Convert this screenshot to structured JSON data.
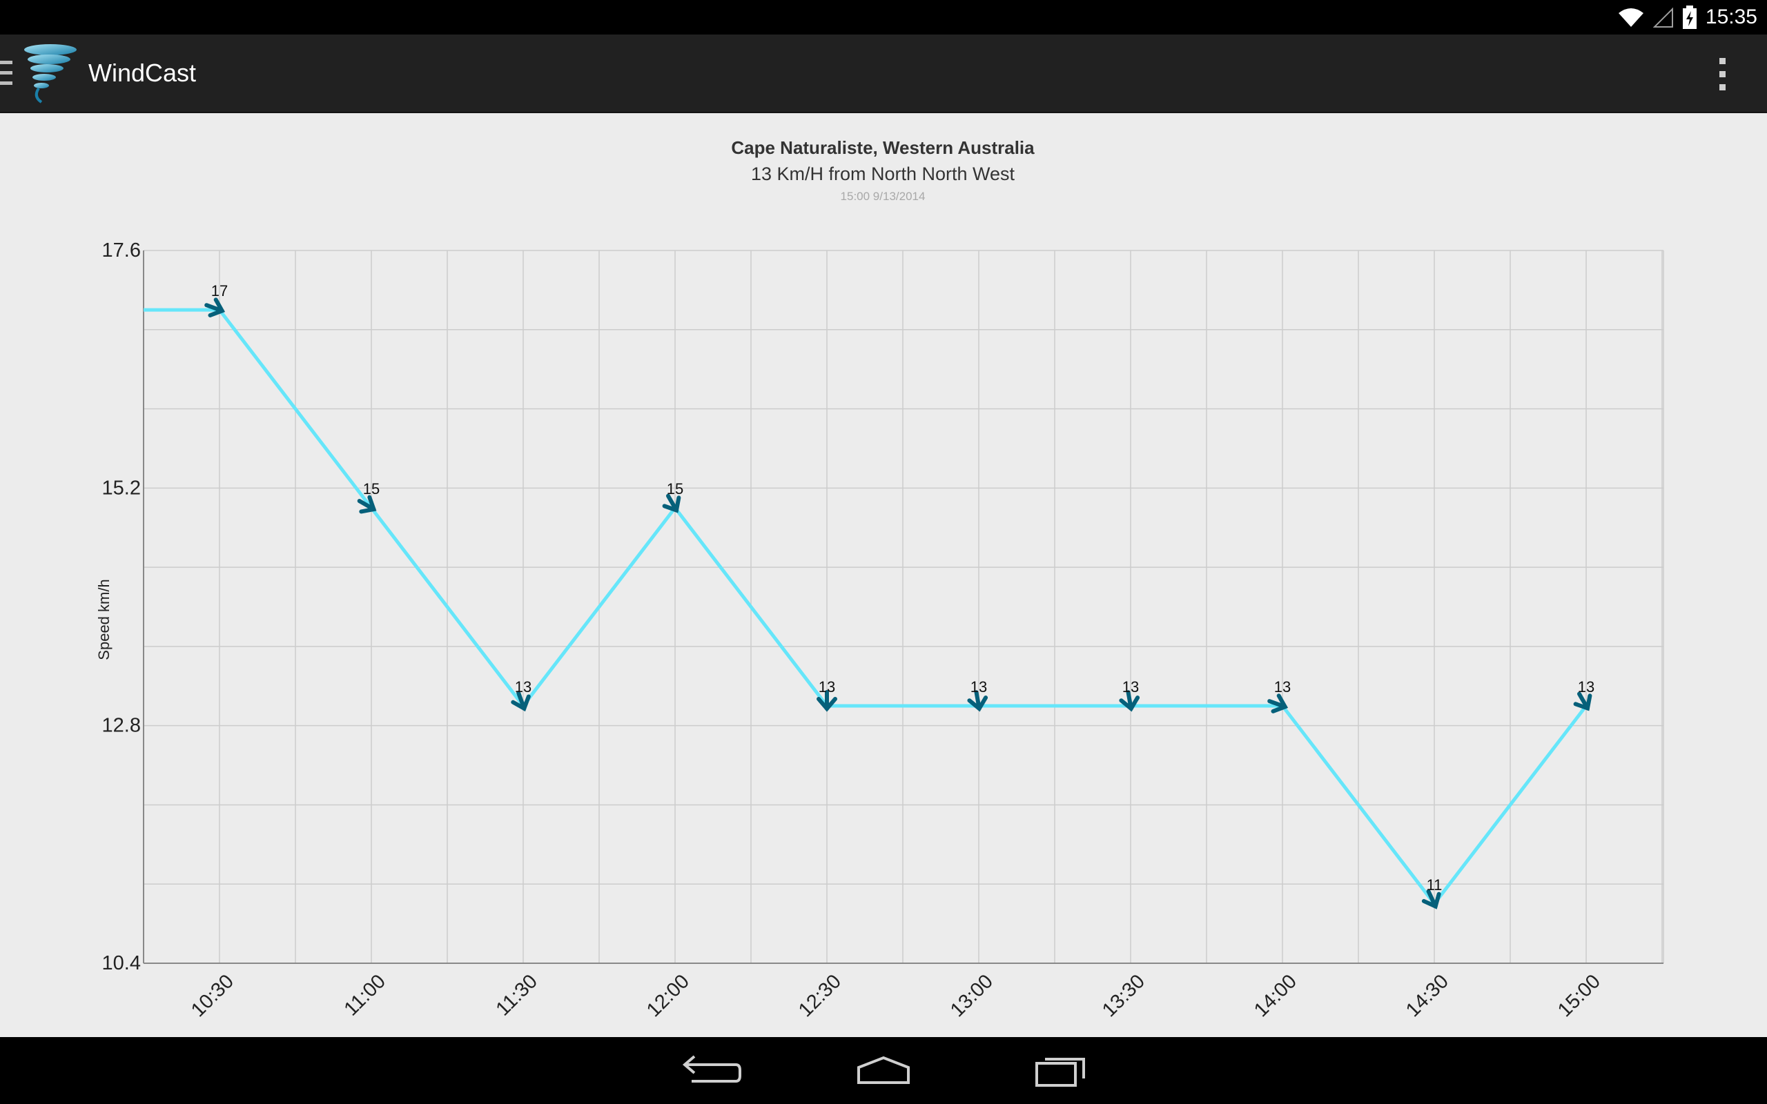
{
  "status_bar": {
    "time": "15:35",
    "icons": [
      "wifi-icon",
      "signal-icon",
      "battery-charging-icon"
    ]
  },
  "action_bar": {
    "title": "WindCast",
    "logo_icon": "tornado-logo-icon",
    "menu_icon": "overflow-menu-icon",
    "drawer_icon": "drawer-icon"
  },
  "header": {
    "location": "Cape Naturaliste, Western Australia",
    "summary": "13 Km/H from North North West",
    "timestamp": "15:00 9/13/2014"
  },
  "chart_data": {
    "type": "line",
    "ylabel": "Speed km/h",
    "xlabel": "",
    "ylim": [
      10.4,
      17.6
    ],
    "y_ticks": [
      "17.6",
      "15.2",
      "12.8",
      "10.4"
    ],
    "categories": [
      "10:30",
      "11:00",
      "11:30",
      "12:00",
      "12:30",
      "13:00",
      "13:30",
      "14:00",
      "14:30",
      "15:00"
    ],
    "values": [
      17,
      15,
      13,
      15,
      13,
      13,
      13,
      13,
      11,
      13
    ],
    "value_labels": [
      "17",
      "15",
      "13",
      "15",
      "13",
      "13",
      "13",
      "13",
      "11",
      "13"
    ],
    "wind_direction_deg": [
      290,
      300,
      340,
      330,
      0,
      350,
      350,
      290,
      335,
      330
    ],
    "line_color": "#66e6fa",
    "arrow_color": "#06607a",
    "grid": true
  },
  "nav_bar": {
    "buttons": [
      "back-icon",
      "home-icon",
      "recent-apps-icon"
    ]
  }
}
